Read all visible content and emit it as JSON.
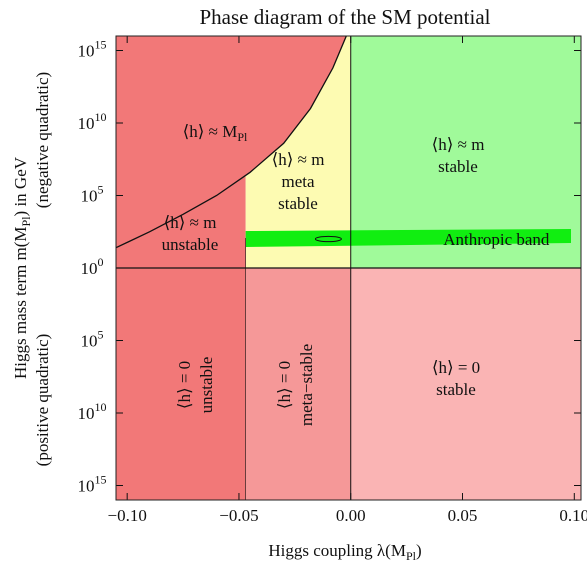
{
  "chart_data": {
    "type": "heatmap",
    "title": "Phase diagram of the SM potential",
    "xlabel": "Higgs coupling λ(M",
    "xlabel_sub": "Pl",
    "xlabel_tail": ")",
    "ylabel_line1_pre": "Higgs mass term m(M",
    "ylabel_line1_sub": "Pl",
    "ylabel_line1_post": ") in GeV",
    "ylabel_line2": "(negative quadratic)",
    "ylabel_line3": "(positive quadratic)",
    "xlim": [
      -0.105,
      0.103
    ],
    "x_ticks": [
      -0.1,
      -0.05,
      0.0,
      0.05,
      0.1
    ],
    "x_tick_labels": [
      "−0.10",
      "−0.05",
      "0.00",
      "0.05",
      "0.10"
    ],
    "y_ticks_upper": [
      {
        "base": "10",
        "exp": "15"
      },
      {
        "base": "10",
        "exp": "10"
      },
      {
        "base": "10",
        "exp": "5"
      },
      {
        "base": "10",
        "exp": "0"
      }
    ],
    "y_ticks_lower": [
      {
        "base": "10",
        "exp": "5"
      },
      {
        "base": "10",
        "exp": "10"
      },
      {
        "base": "10",
        "exp": "15"
      }
    ],
    "y_upper_range_log10": [
      0,
      16
    ],
    "y_lower_range_log10": [
      0,
      16
    ],
    "lambda_boundary_x": [
      -0.047,
      0.0
    ],
    "regions": [
      {
        "id": "upper-left",
        "color": "#f27878",
        "label_line1": "⟨h⟩ ≈ M",
        "label_sub": "Pl",
        "label_line2": ""
      },
      {
        "id": "upper-left-lower",
        "color": "#f27878",
        "label_line1": "⟨h⟩ ≈ m",
        "label_line2": "unstable"
      },
      {
        "id": "upper-middle",
        "color": "#fdfbb2",
        "label_line1": "⟨h⟩ ≈ m",
        "label_line2": "meta",
        "label_line3": "stable"
      },
      {
        "id": "upper-right",
        "color": "#a0fa9a",
        "label_line1": "⟨h⟩ ≈ m",
        "label_line2": "stable"
      },
      {
        "id": "lower-left",
        "color": "#f27878",
        "label_line1": "⟨h⟩ = 0",
        "label_line2": "unstable"
      },
      {
        "id": "lower-middle",
        "color": "#f59898",
        "label_line1": "⟨h⟩ = 0",
        "label_line2": "meta−stable"
      },
      {
        "id": "lower-right",
        "color": "#fab4b4",
        "label_line1": "⟨h⟩ = 0",
        "label_line2": "stable"
      }
    ],
    "anthropic_band": {
      "label": "Anthropic band",
      "color": "#11ee11",
      "x_start": -0.047,
      "x_end": 0.103,
      "y_log10_center": 2.0,
      "ellipse_x": -0.01
    },
    "boundary_curve_log10": [
      {
        "lambda": -0.105,
        "log10m": 1.4
      },
      {
        "lambda": -0.09,
        "log10m": 2.5
      },
      {
        "lambda": -0.075,
        "log10m": 3.7
      },
      {
        "lambda": -0.06,
        "log10m": 5.0
      },
      {
        "lambda": -0.045,
        "log10m": 6.6
      },
      {
        "lambda": -0.03,
        "log10m": 8.6
      },
      {
        "lambda": -0.018,
        "log10m": 11.0
      },
      {
        "lambda": -0.008,
        "log10m": 13.8
      },
      {
        "lambda": -0.002,
        "log10m": 16.0
      }
    ],
    "grid": false,
    "legend": "none"
  }
}
